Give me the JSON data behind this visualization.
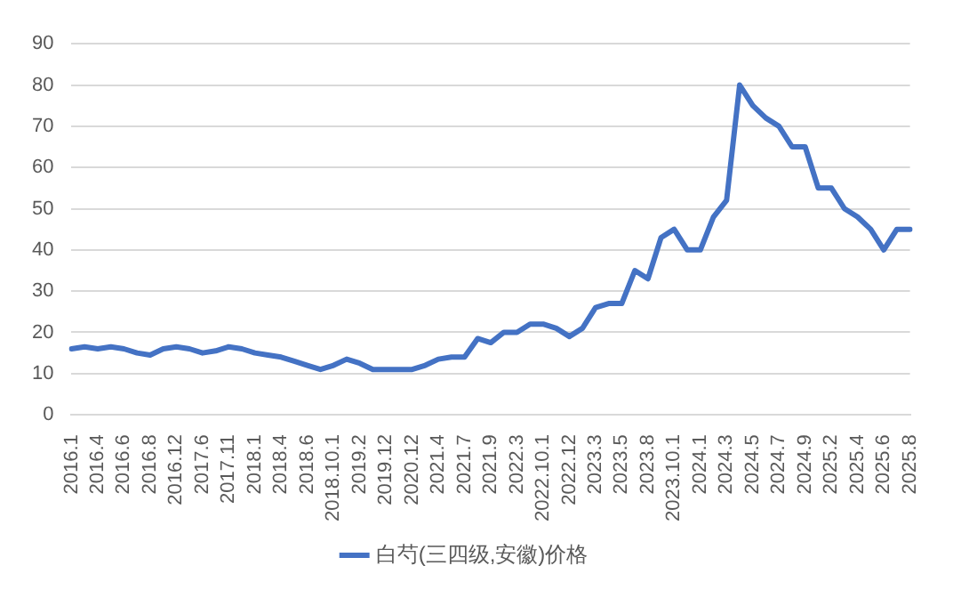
{
  "chart_data": {
    "type": "line",
    "categories": [
      "2016.1",
      null,
      "2016.4",
      null,
      "2016.6",
      null,
      "2016.8",
      null,
      "2016.12",
      null,
      "2017.6",
      null,
      "2017.11",
      null,
      "2018.1",
      null,
      "2018.4",
      null,
      "2018.6",
      null,
      "2018.10.1",
      null,
      "2019.2",
      null,
      "2019.12",
      null,
      "2020.12",
      null,
      "2021.4",
      null,
      "2021.7",
      null,
      "2021.9",
      null,
      "2022.3",
      null,
      "2022.10.1",
      null,
      "2022.12",
      null,
      "2023.3",
      null,
      "2023.5",
      null,
      "2023.8",
      null,
      "2023.10.1",
      null,
      "2024.1",
      null,
      "2024.3",
      null,
      "2024.5",
      null,
      "2024.7",
      null,
      "2024.9",
      null,
      "2025.2",
      null,
      "2025.4",
      null,
      "2025.6",
      null,
      "2025.8"
    ],
    "series": [
      {
        "name": "白芍(三四级,安徽)价格",
        "color": "#4472c4",
        "values": [
          16,
          16.5,
          16,
          16.5,
          16,
          15,
          14.5,
          16,
          16.5,
          16,
          15,
          15.5,
          16.5,
          16,
          15,
          14.5,
          14,
          13,
          12,
          11,
          12,
          13.5,
          12.5,
          11,
          11,
          11,
          11,
          12,
          13.5,
          14,
          14,
          18.5,
          17.5,
          20,
          20,
          22,
          22,
          21,
          19,
          21,
          26,
          27,
          27,
          35,
          33,
          43,
          45,
          40,
          40,
          48,
          52,
          80,
          75,
          72,
          70,
          65,
          65,
          55,
          55,
          50,
          48,
          45,
          40,
          45,
          45
        ]
      }
    ],
    "ylim": [
      0,
      90
    ],
    "yticks": [
      0,
      10,
      20,
      30,
      40,
      50,
      60,
      70,
      80,
      90
    ],
    "grid": "y",
    "legend": "bottom",
    "marker": "none",
    "line_style": "solid"
  }
}
